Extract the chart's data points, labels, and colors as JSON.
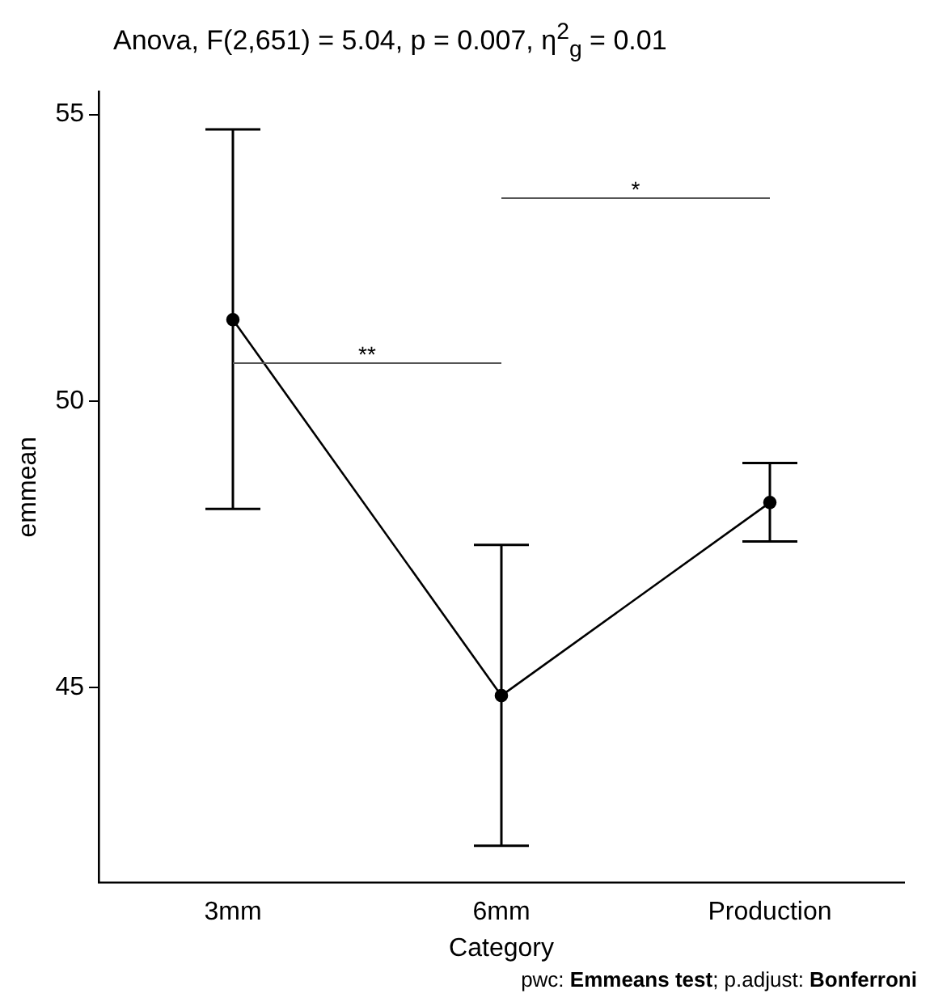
{
  "chart_data": {
    "type": "line",
    "title": "Anova, F(2,651) = 5.04, p = 0.007, η$^{2}$$_{g}$ = 0.01",
    "xlabel": "Category",
    "ylabel": "emmean",
    "categories": [
      "3mm",
      "6mm",
      "Production"
    ],
    "series": [
      {
        "color": "#000000",
        "values": [
          51.42,
          44.86,
          48.23
        ],
        "errors": [
          [
            48.12,
            54.74
          ],
          [
            42.24,
            47.49
          ],
          [
            47.55,
            48.92
          ]
        ]
      }
    ],
    "ylim": [
      41.6,
      55.4
    ],
    "yticks": [
      45,
      50,
      55
    ],
    "grid": false,
    "legend": false,
    "marker": "circle",
    "line_style": "solid",
    "annotations": [
      "**",
      "*",
      "pwc: Emmeans test; p.adjust: Bonferroni"
    ]
  }
}
